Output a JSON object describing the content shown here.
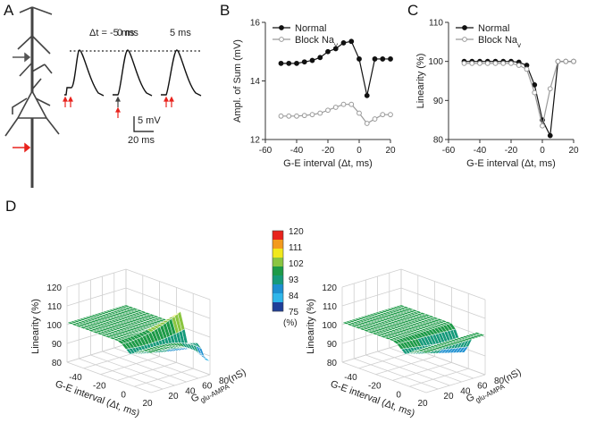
{
  "panels": {
    "a": "A",
    "b": "B",
    "c": "C",
    "d": "D"
  },
  "panel_a": {
    "dt_labels": [
      "Δt = -5 ms",
      "0 ms",
      "5 ms"
    ],
    "scale_v": "5 mV",
    "scale_t": "20 ms",
    "colors": {
      "red": "#e8231d",
      "gray": "#555555"
    }
  },
  "chart_data": [
    {
      "type": "line",
      "id": "B",
      "title": "",
      "xlabel": "G-E interval (Δt, ms)",
      "ylabel": "Ampl. of Sum (mV)",
      "xlim": [
        -60,
        20
      ],
      "ylim": [
        12,
        16
      ],
      "xticks": [
        -60,
        -40,
        -20,
        0,
        20
      ],
      "yticks": [
        12,
        14,
        16
      ],
      "x": [
        -50,
        -45,
        -40,
        -35,
        -30,
        -25,
        -20,
        -15,
        -10,
        -5,
        0,
        5,
        10,
        15,
        20
      ],
      "series": [
        {
          "name": "Normal",
          "color": "#111111",
          "marker": "filled",
          "values": [
            14.6,
            14.6,
            14.6,
            14.65,
            14.7,
            14.8,
            15.0,
            15.1,
            15.3,
            15.35,
            14.75,
            13.5,
            14.75,
            14.75,
            14.75
          ]
        },
        {
          "name": "Block Na",
          "sub": "v",
          "color": "#9a9a9a",
          "marker": "open",
          "values": [
            12.8,
            12.8,
            12.8,
            12.82,
            12.85,
            12.9,
            13.0,
            13.1,
            13.2,
            13.2,
            12.9,
            12.55,
            12.7,
            12.85,
            12.85
          ]
        }
      ],
      "legend": "top-left"
    },
    {
      "type": "line",
      "id": "C",
      "title": "",
      "xlabel": "G-E interval (Δt, ms)",
      "ylabel": "Linearity (%)",
      "xlim": [
        -60,
        20
      ],
      "ylim": [
        80,
        110
      ],
      "xticks": [
        -60,
        -40,
        -20,
        0,
        20
      ],
      "yticks": [
        80,
        90,
        100,
        110
      ],
      "x": [
        -50,
        -45,
        -40,
        -35,
        -30,
        -25,
        -20,
        -15,
        -10,
        -5,
        0,
        5,
        10,
        15,
        20
      ],
      "series": [
        {
          "name": "Normal",
          "color": "#111111",
          "marker": "filled",
          "values": [
            100,
            100,
            100,
            100,
            100,
            100,
            100,
            99.8,
            99,
            94,
            85,
            81,
            100,
            100,
            100
          ]
        },
        {
          "name": "Block Na",
          "sub": "v",
          "color": "#9a9a9a",
          "marker": "open",
          "values": [
            99.5,
            99.5,
            99.5,
            99.5,
            99.5,
            99.5,
            99.5,
            99,
            98,
            92,
            83.5,
            93,
            100,
            100,
            100
          ]
        }
      ],
      "legend": "top-left"
    },
    {
      "type": "surface",
      "id": "D-left",
      "zlabel": "Linearity (%)",
      "zticks": [
        80,
        90,
        100,
        110,
        120
      ],
      "xlabel": "G-E interval (Δt, ms)",
      "xticks": [
        -40,
        -20,
        0,
        20
      ],
      "ylabel": "G",
      "ylabel_sub": "glu-AMPA",
      "ylabel_unit": " (nS)",
      "yticks": [
        20,
        40,
        60,
        80
      ]
    },
    {
      "type": "surface",
      "id": "D-right",
      "zlabel": "Linearity (%)",
      "zticks": [
        80,
        90,
        100,
        110,
        120
      ],
      "xlabel": "G-E interval (Δt, ms)",
      "xticks": [
        -40,
        -20,
        0,
        20
      ],
      "ylabel": "G",
      "ylabel_sub": "glu-AMPA",
      "ylabel_unit": " (nS)",
      "yticks": [
        20,
        40,
        60,
        80
      ]
    }
  ],
  "colorbar": {
    "ticks": [
      "120",
      "111",
      "102",
      "93",
      "84",
      "75"
    ],
    "unit": "(%)",
    "colors": [
      "#e8231d",
      "#f39a1d",
      "#f1e81c",
      "#8ac540",
      "#1d9a47",
      "#169a7a",
      "#1d8fd0",
      "#2fb6ea",
      "#1f3f99"
    ]
  }
}
